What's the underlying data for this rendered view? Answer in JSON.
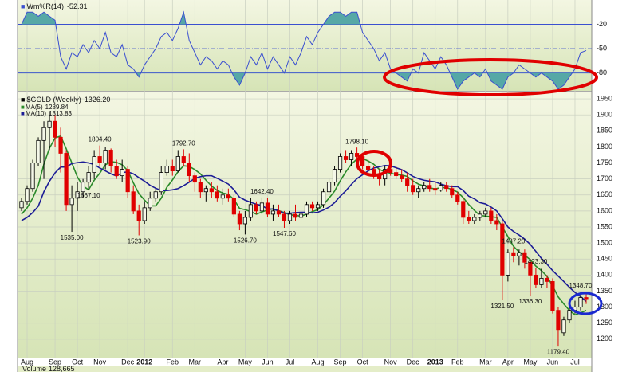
{
  "chart_data": [
    {
      "type": "line",
      "title": "Wm%R(14)",
      "last": -52.31,
      "color": "#3a4fd0",
      "shade_color": "#56a8a6",
      "ylim": [
        -102,
        10
      ],
      "yticks": [
        -20,
        -50,
        -80
      ],
      "levels": {
        "upper": -20,
        "lower": -80
      },
      "values": [
        -20,
        -5,
        -5,
        -10,
        -5,
        -10,
        -15,
        -60,
        -75,
        -55,
        -60,
        -45,
        -55,
        -40,
        -50,
        -30,
        -55,
        -60,
        -45,
        -70,
        -75,
        -85,
        -70,
        -60,
        -50,
        -35,
        -30,
        -40,
        -25,
        -5,
        -40,
        -55,
        -70,
        -60,
        -65,
        -75,
        -65,
        -70,
        -85,
        -95,
        -80,
        -60,
        -70,
        -55,
        -75,
        -60,
        -70,
        -80,
        -60,
        -70,
        -55,
        -35,
        -45,
        -30,
        -20,
        -10,
        -5,
        -5,
        -10,
        -5,
        -5,
        -30,
        -40,
        -50,
        -65,
        -55,
        -75,
        -80,
        -85,
        -90,
        -75,
        -80,
        -55,
        -65,
        -75,
        -60,
        -70,
        -85,
        -100,
        -90,
        -85,
        -80,
        -85,
        -75,
        -90,
        -95,
        -100,
        -85,
        -80,
        -70,
        -75,
        -80,
        -85,
        -80,
        -85,
        -90,
        -100,
        -95,
        -85,
        -75,
        -55,
        -52.31
      ]
    },
    {
      "type": "candlestick",
      "title": "$GOLD (Weekly)",
      "last": {
        "value": 1326.2,
        "label": "1326.20"
      },
      "up_color": "#000000",
      "down_color": "#e00000",
      "grid": true,
      "ylim": [
        1140,
        1970
      ],
      "yticks": [
        1200,
        1250,
        1300,
        1350,
        1400,
        1450,
        1500,
        1550,
        1600,
        1650,
        1700,
        1750,
        1800,
        1850,
        1900,
        1950
      ],
      "categories": [
        null,
        "Aug",
        null,
        null,
        null,
        null,
        "Sep",
        null,
        null,
        null,
        "Oct",
        null,
        null,
        null,
        "Nov",
        null,
        null,
        null,
        null,
        "Dec",
        null,
        null,
        "2012",
        null,
        null,
        null,
        null,
        "Feb",
        null,
        null,
        null,
        "Mar",
        null,
        null,
        null,
        null,
        "Apr",
        null,
        null,
        null,
        "May",
        null,
        null,
        null,
        "Jun",
        null,
        null,
        null,
        "Jul",
        null,
        null,
        null,
        null,
        "Aug",
        null,
        null,
        null,
        "Sep",
        null,
        null,
        null,
        "Oct",
        null,
        null,
        null,
        null,
        "Nov",
        null,
        null,
        null,
        "Dec",
        null,
        null,
        null,
        "2013",
        null,
        null,
        null,
        "Feb",
        null,
        null,
        null,
        null,
        "Mar",
        null,
        null,
        null,
        "Apr",
        null,
        null,
        null,
        "May",
        null,
        null,
        null,
        "Jun",
        null,
        null,
        null,
        "Jul",
        null,
        null
      ],
      "open": [
        1610,
        1630,
        1670,
        1750,
        1820,
        1860,
        1880,
        1830,
        1780,
        1620,
        1640,
        1660,
        1690,
        1720,
        1770,
        1750,
        1790,
        1740,
        1710,
        1730,
        1660,
        1600,
        1570,
        1610,
        1640,
        1660,
        1720,
        1740,
        1725,
        1770,
        1750,
        1710,
        1690,
        1660,
        1670,
        1660,
        1640,
        1650,
        1640,
        1590,
        1560,
        1580,
        1620,
        1600,
        1625,
        1590,
        1600,
        1590,
        1570,
        1590,
        1580,
        1590,
        1620,
        1610,
        1620,
        1660,
        1690,
        1730,
        1770,
        1760,
        1780,
        1770,
        1740,
        1730,
        1710,
        1700,
        1730,
        1720,
        1710,
        1700,
        1680,
        1660,
        1670,
        1680,
        1670,
        1665,
        1680,
        1670,
        1650,
        1630,
        1580,
        1570,
        1580,
        1590,
        1600,
        1570,
        1560,
        1400,
        1470,
        1460,
        1470,
        1440,
        1400,
        1370,
        1390,
        1380,
        1290,
        1220,
        1260,
        1290,
        1300,
        1330
      ],
      "high": [
        1640,
        1680,
        1760,
        1830,
        1880,
        1910,
        1900,
        1860,
        1790,
        1680,
        1690,
        1700,
        1740,
        1790,
        1804.4,
        1800,
        1795,
        1760,
        1760,
        1740,
        1680,
        1620,
        1630,
        1660,
        1670,
        1740,
        1760,
        1760,
        1790,
        1792.7,
        1780,
        1720,
        1700,
        1680,
        1690,
        1680,
        1670,
        1670,
        1650,
        1600,
        1600,
        1640,
        1630,
        1642.4,
        1640,
        1620,
        1620,
        1600,
        1600,
        1620,
        1600,
        1630,
        1630,
        1630,
        1670,
        1700,
        1740,
        1780,
        1790,
        1790,
        1798.1,
        1780,
        1760,
        1740,
        1730,
        1740,
        1750,
        1740,
        1730,
        1720,
        1700,
        1680,
        1690,
        1700,
        1690,
        1690,
        1690,
        1680,
        1660,
        1640,
        1600,
        1590,
        1600,
        1610,
        1610,
        1590,
        1570,
        1480,
        1487.2,
        1480,
        1480,
        1450,
        1423.3,
        1420,
        1400,
        1390,
        1300,
        1270,
        1300,
        1320,
        1348.7,
        1340
      ],
      "low": [
        1600,
        1620,
        1660,
        1740,
        1700,
        1790,
        1800,
        1720,
        1600,
        1535,
        1600,
        1640,
        1667.1,
        1700,
        1740,
        1730,
        1720,
        1700,
        1690,
        1640,
        1590,
        1523.9,
        1560,
        1600,
        1630,
        1650,
        1710,
        1710,
        1720,
        1740,
        1690,
        1660,
        1640,
        1630,
        1640,
        1630,
        1620,
        1630,
        1580,
        1540,
        1526.7,
        1570,
        1590,
        1590,
        1580,
        1570,
        1580,
        1547.6,
        1560,
        1570,
        1570,
        1580,
        1600,
        1600,
        1610,
        1650,
        1680,
        1720,
        1750,
        1740,
        1760,
        1730,
        1720,
        1700,
        1680,
        1680,
        1710,
        1700,
        1690,
        1660,
        1650,
        1640,
        1660,
        1660,
        1650,
        1660,
        1660,
        1640,
        1620,
        1560,
        1560,
        1560,
        1570,
        1580,
        1560,
        1540,
        1321.5,
        1380,
        1440,
        1430,
        1420,
        1336.3,
        1360,
        1360,
        1360,
        1280,
        1179.4,
        1210,
        1250,
        1280,
        1290,
        1310
      ],
      "close": [
        1630,
        1670,
        1750,
        1820,
        1860,
        1880,
        1830,
        1780,
        1620,
        1640,
        1660,
        1690,
        1720,
        1770,
        1750,
        1790,
        1740,
        1710,
        1730,
        1660,
        1600,
        1570,
        1610,
        1640,
        1660,
        1720,
        1740,
        1725,
        1770,
        1750,
        1710,
        1690,
        1660,
        1670,
        1660,
        1640,
        1650,
        1640,
        1590,
        1560,
        1580,
        1620,
        1600,
        1625,
        1590,
        1600,
        1590,
        1570,
        1590,
        1580,
        1590,
        1620,
        1610,
        1620,
        1660,
        1690,
        1730,
        1770,
        1760,
        1780,
        1770,
        1740,
        1730,
        1710,
        1700,
        1730,
        1720,
        1710,
        1700,
        1680,
        1660,
        1670,
        1680,
        1670,
        1665,
        1680,
        1670,
        1650,
        1630,
        1580,
        1570,
        1580,
        1590,
        1600,
        1570,
        1560,
        1400,
        1470,
        1460,
        1470,
        1440,
        1400,
        1370,
        1390,
        1380,
        1290,
        1230,
        1260,
        1290,
        1300,
        1330,
        1326.2
      ],
      "series": [
        {
          "name": "MA(5)",
          "last": 1289.84,
          "color": "#2a8a2a",
          "values": [
            1590,
            1610,
            1640,
            1680,
            1746,
            1796,
            1828,
            1834,
            1794,
            1750,
            1706,
            1678,
            1666,
            1696,
            1718,
            1744,
            1754,
            1752,
            1744,
            1726,
            1688,
            1654,
            1634,
            1616,
            1616,
            1640,
            1674,
            1697,
            1723,
            1741,
            1739,
            1729,
            1716,
            1696,
            1678,
            1664,
            1656,
            1652,
            1636,
            1608,
            1604,
            1598,
            1590,
            1597,
            1603,
            1607,
            1601,
            1595,
            1588,
            1586,
            1584,
            1590,
            1598,
            1604,
            1620,
            1640,
            1662,
            1694,
            1722,
            1746,
            1762,
            1764,
            1756,
            1746,
            1730,
            1722,
            1718,
            1714,
            1712,
            1708,
            1694,
            1684,
            1678,
            1672,
            1669,
            1673,
            1673,
            1667,
            1659,
            1642,
            1620,
            1602,
            1586,
            1584,
            1582,
            1580,
            1550,
            1520,
            1490,
            1472,
            1462,
            1448,
            1428,
            1414,
            1396,
            1366,
            1332,
            1310,
            1290,
            1276,
            1282,
            1290
          ]
        },
        {
          "name": "MA(10)",
          "last": 1313.83,
          "color": "#1c1c96",
          "values": [
            1570,
            1580,
            1595,
            1615,
            1660,
            1693,
            1719,
            1737,
            1737,
            1748,
            1751,
            1753,
            1750,
            1745,
            1734,
            1725,
            1716,
            1709,
            1720,
            1722,
            1716,
            1704,
            1693,
            1680,
            1671,
            1664,
            1664,
            1666,
            1670,
            1679,
            1690,
            1702,
            1707,
            1710,
            1710,
            1702,
            1693,
            1684,
            1666,
            1643,
            1634,
            1627,
            1621,
            1617,
            1606,
            1606,
            1600,
            1593,
            1593,
            1595,
            1596,
            1596,
            1594,
            1596,
            1603,
            1612,
            1626,
            1646,
            1663,
            1683,
            1701,
            1713,
            1725,
            1734,
            1738,
            1742,
            1741,
            1735,
            1729,
            1719,
            1708,
            1701,
            1696,
            1693,
            1691,
            1684,
            1679,
            1676,
            1676,
            1664,
            1646,
            1638,
            1626,
            1622,
            1612,
            1600,
            1576,
            1550,
            1536,
            1525,
            1512,
            1496,
            1474,
            1452,
            1434,
            1414,
            1397,
            1380,
            1362,
            1346,
            1333,
            1318
          ]
        }
      ],
      "annotations": [
        {
          "value": 1804.4,
          "label": "1804.40"
        },
        {
          "value": 1667.1,
          "label": "1667.10"
        },
        {
          "value": 1535,
          "label": "1535.00"
        },
        {
          "value": 1792.7,
          "label": "1792.70"
        },
        {
          "value": 1523.9,
          "label": "1523.90"
        },
        {
          "value": 1642.4,
          "label": "1642.40"
        },
        {
          "value": 1526.7,
          "label": "1526.70"
        },
        {
          "value": 1547.6,
          "label": "1547.60"
        },
        {
          "value": 1798.1,
          "label": "1798.10"
        },
        {
          "value": 1487.2,
          "label": "1487.20"
        },
        {
          "value": 1423.3,
          "label": "1423.30"
        },
        {
          "value": 1321.5,
          "label": "1321.50"
        },
        {
          "value": 1336.3,
          "label": "1336.30"
        },
        {
          "value": 1348.7,
          "label": "1348.70"
        },
        {
          "value": 1179.4,
          "label": "1179.40"
        }
      ]
    }
  ],
  "volume": {
    "label": "Volume",
    "value": {
      "value": 128665,
      "label": "128,665"
    }
  }
}
